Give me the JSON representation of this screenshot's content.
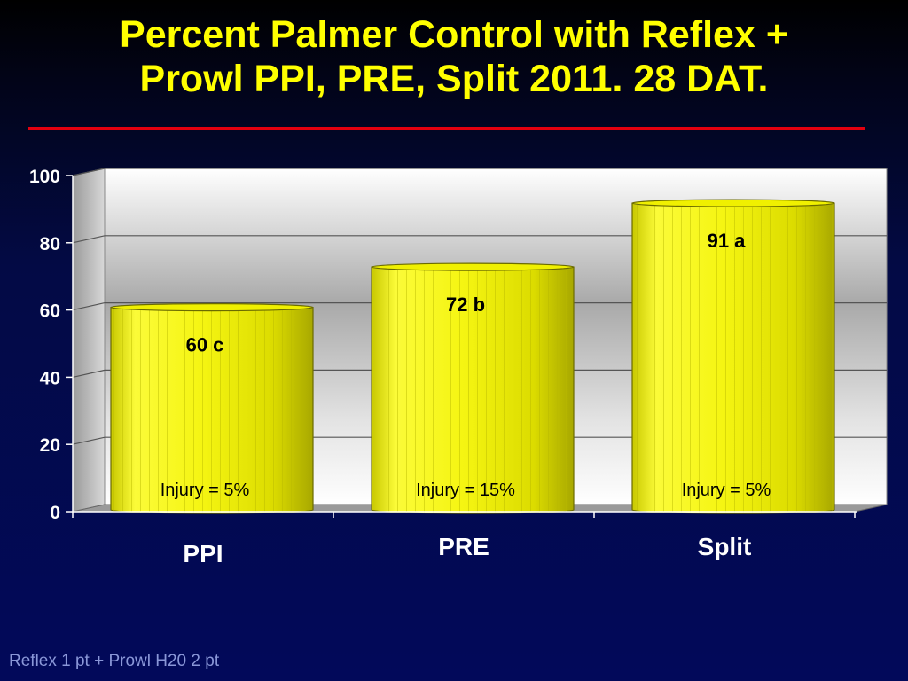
{
  "slide": {
    "title_line1": "Percent Palmer Control with Reflex +",
    "title_line2": "Prowl PPI, PRE, Split 2011.  28 DAT.",
    "footnote": "Reflex 1 pt + Prowl H20 2 pt"
  },
  "colors": {
    "title": "#ffff00",
    "rule": "#e3000f",
    "bar": "#f3f30a",
    "background": "#02095a",
    "axis_text": "#ffffff"
  },
  "chart_data": {
    "type": "bar",
    "categories": [
      "PPI",
      "PRE",
      "Split"
    ],
    "values": [
      60,
      72,
      91
    ],
    "value_labels": [
      "60 c",
      "72 b",
      "91 a"
    ],
    "annotations": [
      "Injury = 5%",
      "Injury = 15%",
      "Injury = 5%"
    ],
    "ylim": [
      0,
      100
    ],
    "yticks": [
      0,
      20,
      40,
      60,
      80,
      100
    ],
    "grid": true,
    "style": "3d-cylinder"
  }
}
